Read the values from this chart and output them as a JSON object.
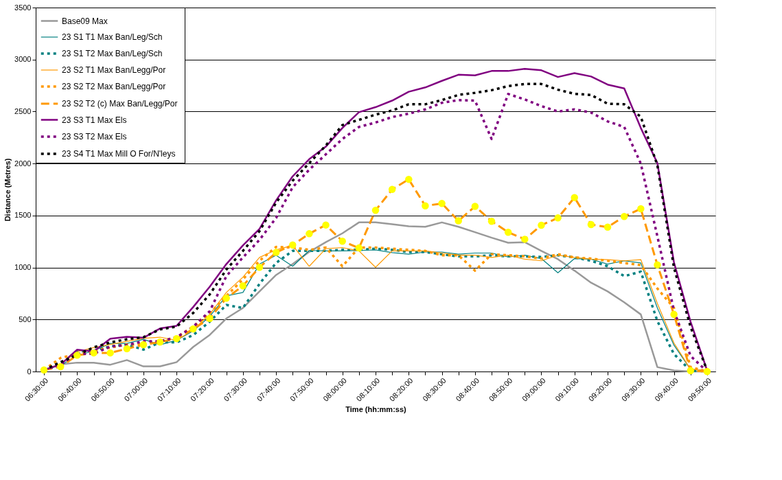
{
  "chart_data": {
    "type": "line",
    "xlabel": "Time (hh:mm:ss)",
    "ylabel": "Distance (Metres)",
    "categories": [
      "06:30:00",
      null,
      "06:40:00",
      null,
      "06:50:00",
      null,
      "07:00:00",
      null,
      "07:10:00",
      null,
      "07:20:00",
      null,
      "07:30:00",
      null,
      "07:40:00",
      null,
      "07:50:00",
      null,
      "08:00:00",
      null,
      "08:10:00",
      null,
      "08:20:00",
      null,
      "08:30:00",
      null,
      "08:40:00",
      null,
      "08:50:00",
      null,
      "09:00:00",
      null,
      "09:10:00",
      null,
      "09:20:00",
      null,
      "09:30:00",
      null,
      "09:40:00",
      null,
      "09:50:00"
    ],
    "ylim": [
      0,
      3500
    ],
    "yticks": [
      0,
      500,
      1000,
      1500,
      2000,
      2500,
      3000,
      3500
    ],
    "grid": "y",
    "legend": "top left",
    "marker": "none",
    "series": [
      {
        "name": "Base09 Max",
        "color": "#999999",
        "line_style": "solid",
        "values": [
          15,
          70,
          85,
          84,
          65,
          110,
          49,
          50,
          90,
          236,
          352,
          510,
          611,
          770,
          928,
          1033,
          1150,
          1244,
          1329,
          1434,
          1434,
          1417,
          1396,
          1392,
          1434,
          1392,
          1340,
          1287,
          1238,
          1244,
          1160,
          1080,
          970,
          854,
          770,
          665,
          549,
          42,
          10,
          0,
          0
        ]
      },
      {
        "name": "23 S1 T1 Max Ban/Leg/Sch",
        "color": "#008080",
        "line_style": "solid",
        "values": [
          15,
          60,
          152,
          200,
          270,
          270,
          310,
          257,
          300,
          390,
          530,
          727,
          760,
          1033,
          1118,
          1012,
          1164,
          1160,
          1160,
          1164,
          1170,
          1143,
          1128,
          1149,
          1149,
          1128,
          1139,
          1139,
          1101,
          1118,
          1086,
          949,
          1086,
          1080,
          1033,
          1065,
          1044,
          611,
          253,
          21,
          10
        ]
      },
      {
        "name": "23 S1 T2 Max Ban/Leg/Sch",
        "color": "#008080",
        "line_style": "dotted",
        "values": [
          15,
          60,
          190,
          200,
          240,
          260,
          210,
          280,
          280,
          350,
          480,
          640,
          611,
          843,
          1044,
          1160,
          1160,
          1160,
          1170,
          1170,
          1181,
          1170,
          1149,
          1149,
          1128,
          1107,
          1107,
          1118,
          1107,
          1107,
          1101,
          1118,
          1097,
          1065,
          1012,
          917,
          960,
          485,
          168,
          10,
          0
        ]
      },
      {
        "name": "23 S2 T1 Max Ban/Legg/Por",
        "color": "#ff9900",
        "line_style": "solid",
        "values": [
          15,
          70,
          190,
          230,
          260,
          290,
          320,
          330,
          300,
          400,
          550,
          760,
          907,
          1097,
          1170,
          1213,
          1012,
          1181,
          1192,
          1160,
          1002,
          1160,
          1160,
          1160,
          1139,
          1118,
          1118,
          1097,
          1118,
          1080,
          1065,
          1118,
          1097,
          1080,
          1076,
          1065,
          1076,
          654,
          274,
          21,
          10
        ]
      },
      {
        "name": "23 S2 T2 Max Ban/Legg/Por",
        "color": "#ff9900",
        "line_style": "dotted",
        "values": [
          15,
          130,
          170,
          200,
          230,
          260,
          260,
          290,
          330,
          430,
          560,
          727,
          886,
          1065,
          1198,
          1192,
          1170,
          1192,
          1012,
          1192,
          1192,
          1181,
          1170,
          1160,
          1118,
          1118,
          970,
          1128,
          1118,
          1107,
          1086,
          1128,
          1097,
          1086,
          1065,
          1044,
          1023,
          798,
          611,
          42,
          0
        ]
      },
      {
        "name": "23 S2 T2 (c)  Max Ban/Legg/Por",
        "color": "#ff9900",
        "line_style": "dashed",
        "marker": "circle",
        "colors": [
          "#ffff00",
          "#ffff00",
          "#ffff00",
          "#ffff00",
          "#ffff00",
          "#ffff00",
          "#ffff00",
          "#ffff00",
          "#ffff00",
          "#ffff00",
          "#ffff00",
          "#ffff00",
          "#ffff00",
          "#ffff00",
          "#ffff00",
          "#ffff00",
          "#ffff00",
          "#ffff00",
          "#ffff00",
          "#ffff00",
          "#ffff00",
          "#ffff00",
          "#ffff00",
          "#ffff00",
          "#ffff00",
          "#ffff00",
          "#ffff00",
          "#ffff00",
          "#ffff00",
          "#ffff00",
          "#ffff00",
          "#ffff00",
          "#ffff00",
          "#ffff00",
          "#ffff00",
          "#ffff00",
          "#ffff00",
          "#ffff00",
          "#ffff00",
          "#ffff00",
          "#ffff00"
        ],
        "values": [
          15,
          46,
          156,
          179,
          179,
          219,
          257,
          284,
          316,
          409,
          510,
          705,
          824,
          1002,
          1145,
          1217,
          1325,
          1409,
          1253,
          1188,
          1550,
          1751,
          1848,
          1593,
          1616,
          1449,
          1588,
          1445,
          1339,
          1272,
          1407,
          1477,
          1673,
          1413,
          1388,
          1491,
          1565,
          1025,
          549,
          8,
          0
        ]
      },
      {
        "name": "23 S3 T1 Max Els",
        "color": "#800080",
        "line_style": "solid",
        "values": [
          15,
          67,
          210,
          193,
          315,
          334,
          325,
          414,
          439,
          620,
          816,
          1033,
          1213,
          1371,
          1645,
          1877,
          2042,
          2162,
          2342,
          2494,
          2542,
          2605,
          2690,
          2732,
          2795,
          2854,
          2848,
          2890,
          2890,
          2911,
          2897,
          2832,
          2869,
          2837,
          2759,
          2722,
          2342,
          2004,
          1050,
          480,
          10
        ]
      },
      {
        "name": "23 S3 T2 Max Els",
        "color": "#800080",
        "line_style": "dotted",
        "values": [
          15,
          70,
          170,
          170,
          240,
          255,
          290,
          290,
          330,
          430,
          580,
          917,
          1097,
          1266,
          1477,
          1772,
          1941,
          2088,
          2236,
          2352,
          2394,
          2447,
          2479,
          2521,
          2584,
          2610,
          2605,
          2236,
          2669,
          2616,
          2553,
          2500,
          2521,
          2490,
          2405,
          2352,
          2000,
          1300,
          586,
          150,
          0
        ]
      },
      {
        "name": "23 S4 T1 Max Mill O For/N'leys",
        "color": "#000000",
        "line_style": "dotted",
        "values": [
          15,
          90,
          160,
          232,
          280,
          310,
          330,
          405,
          432,
          563,
          742,
          980,
          1160,
          1350,
          1624,
          1835,
          2004,
          2173,
          2370,
          2420,
          2470,
          2510,
          2570,
          2570,
          2610,
          2660,
          2680,
          2705,
          2745,
          2765,
          2765,
          2710,
          2670,
          2660,
          2575,
          2570,
          2450,
          1983,
          1000,
          430,
          10
        ]
      }
    ]
  }
}
